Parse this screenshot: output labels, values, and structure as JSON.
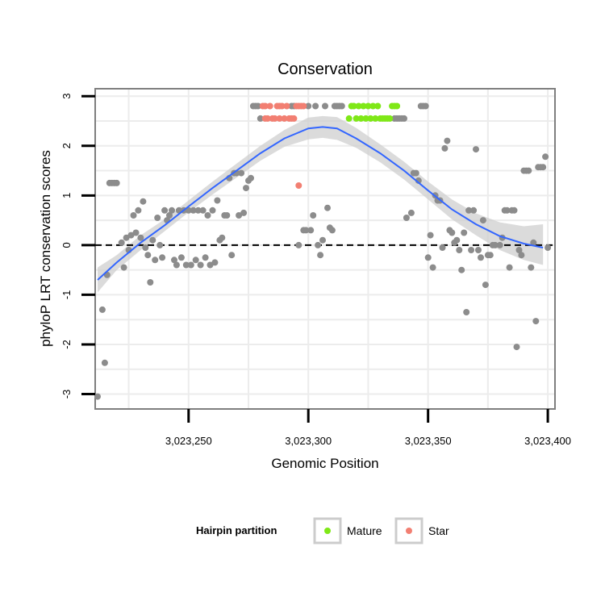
{
  "chart_data": {
    "type": "scatter",
    "title": "Conservation",
    "xlabel": "Genomic Position",
    "ylabel": "phyloP LRT conservation scores",
    "xlim": [
      3023211,
      3023403
    ],
    "ylim": [
      -3.3,
      3.15
    ],
    "x_ticks": [
      3023250,
      3023300,
      3023350,
      3023400
    ],
    "x_tick_labels": [
      "3,023,250",
      "3,023,300",
      "3,023,350",
      "3,023,400"
    ],
    "y_ticks": [
      -3,
      -2,
      -1,
      0,
      1,
      2,
      3
    ],
    "y_tick_labels": [
      "-3",
      "-2",
      "-1",
      "0",
      "1",
      "2",
      "3"
    ],
    "reference_line": {
      "y": 0,
      "style": "dashed"
    },
    "colors": {
      "other": "#8c8c8c",
      "mature": "#7fe817",
      "star": "#f27f72",
      "smooth": "#3366ff",
      "band": "#cfcfcf",
      "grid": "#ececec"
    },
    "legend": {
      "title": "Hairpin partition",
      "position": "bottom",
      "entries": [
        {
          "key": "mature",
          "label": "Mature"
        },
        {
          "key": "star",
          "label": "Star"
        }
      ]
    },
    "smooth": {
      "x": [
        3023212,
        3023220,
        3023230,
        3023240,
        3023250,
        3023260,
        3023270,
        3023280,
        3023290,
        3023300,
        3023306,
        3023312,
        3023320,
        3023330,
        3023340,
        3023350,
        3023360,
        3023370,
        3023380,
        3023390,
        3023398
      ],
      "y": [
        -0.7,
        -0.35,
        0.05,
        0.4,
        0.78,
        1.15,
        1.5,
        1.85,
        2.15,
        2.35,
        2.38,
        2.35,
        2.15,
        1.85,
        1.5,
        1.1,
        0.72,
        0.42,
        0.18,
        0.03,
        -0.05
      ],
      "lower": [
        -0.95,
        -0.5,
        -0.1,
        0.28,
        0.66,
        1.02,
        1.36,
        1.7,
        1.98,
        2.13,
        2.16,
        2.12,
        1.96,
        1.67,
        1.32,
        0.92,
        0.52,
        0.2,
        -0.1,
        -0.3,
        -0.4
      ],
      "upper": [
        -0.45,
        -0.2,
        0.2,
        0.52,
        0.9,
        1.28,
        1.64,
        2.0,
        2.32,
        2.57,
        2.6,
        2.58,
        2.36,
        2.03,
        1.68,
        1.28,
        0.92,
        0.64,
        0.46,
        0.38,
        0.42
      ]
    },
    "series": [
      {
        "name": "Other",
        "key": "other",
        "points": [
          [
            3023212,
            -3.05
          ],
          [
            3023214,
            -1.3
          ],
          [
            3023215,
            -2.37
          ],
          [
            3023216,
            -0.6
          ],
          [
            3023217,
            1.25
          ],
          [
            3023218,
            1.25
          ],
          [
            3023219,
            1.25
          ],
          [
            3023220,
            1.25
          ],
          [
            3023222,
            0.05
          ],
          [
            3023223,
            -0.45
          ],
          [
            3023224,
            0.15
          ],
          [
            3023225,
            -0.1
          ],
          [
            3023226,
            0.2
          ],
          [
            3023227,
            0.6
          ],
          [
            3023228,
            0.25
          ],
          [
            3023229,
            0.7
          ],
          [
            3023230,
            0.15
          ],
          [
            3023231,
            0.88
          ],
          [
            3023232,
            -0.05
          ],
          [
            3023233,
            -0.2
          ],
          [
            3023234,
            -0.75
          ],
          [
            3023235,
            0.1
          ],
          [
            3023236,
            -0.3
          ],
          [
            3023237,
            0.55
          ],
          [
            3023238,
            0.0
          ],
          [
            3023239,
            -0.25
          ],
          [
            3023240,
            0.7
          ],
          [
            3023241,
            0.5
          ],
          [
            3023242,
            0.6
          ],
          [
            3023243,
            0.7
          ],
          [
            3023244,
            -0.3
          ],
          [
            3023245,
            -0.4
          ],
          [
            3023246,
            0.7
          ],
          [
            3023247,
            -0.25
          ],
          [
            3023248,
            0.7
          ],
          [
            3023249,
            -0.4
          ],
          [
            3023250,
            0.7
          ],
          [
            3023251,
            -0.4
          ],
          [
            3023252,
            0.7
          ],
          [
            3023253,
            -0.3
          ],
          [
            3023254,
            0.7
          ],
          [
            3023255,
            -0.4
          ],
          [
            3023256,
            0.7
          ],
          [
            3023257,
            -0.25
          ],
          [
            3023258,
            0.6
          ],
          [
            3023259,
            -0.4
          ],
          [
            3023260,
            0.7
          ],
          [
            3023261,
            -0.35
          ],
          [
            3023262,
            0.9
          ],
          [
            3023263,
            0.1
          ],
          [
            3023264,
            0.15
          ],
          [
            3023265,
            0.6
          ],
          [
            3023266,
            0.6
          ],
          [
            3023267,
            1.35
          ],
          [
            3023268,
            -0.2
          ],
          [
            3023269,
            1.45
          ],
          [
            3023270,
            1.45
          ],
          [
            3023271,
            0.6
          ],
          [
            3023272,
            1.45
          ],
          [
            3023273,
            0.65
          ],
          [
            3023274,
            1.15
          ],
          [
            3023275,
            1.3
          ],
          [
            3023276,
            1.35
          ],
          [
            3023277,
            2.8
          ],
          [
            3023278,
            2.8
          ],
          [
            3023279,
            2.8
          ],
          [
            3023280,
            2.55
          ],
          [
            3023293,
            2.8
          ],
          [
            3023294,
            2.8
          ],
          [
            3023296,
            0.0
          ],
          [
            3023298,
            0.3
          ],
          [
            3023299,
            0.3
          ],
          [
            3023300,
            2.8
          ],
          [
            3023301,
            0.3
          ],
          [
            3023302,
            0.6
          ],
          [
            3023303,
            2.8
          ],
          [
            3023304,
            0.0
          ],
          [
            3023305,
            -0.2
          ],
          [
            3023306,
            0.1
          ],
          [
            3023307,
            2.8
          ],
          [
            3023308,
            0.75
          ],
          [
            3023309,
            0.35
          ],
          [
            3023310,
            0.3
          ],
          [
            3023311,
            2.8
          ],
          [
            3023312,
            2.8
          ],
          [
            3023313,
            2.8
          ],
          [
            3023314,
            2.8
          ],
          [
            3023336,
            2.55
          ],
          [
            3023337,
            2.55
          ],
          [
            3023338,
            2.55
          ],
          [
            3023339,
            2.55
          ],
          [
            3023340,
            2.55
          ],
          [
            3023341,
            0.55
          ],
          [
            3023343,
            0.65
          ],
          [
            3023344,
            1.45
          ],
          [
            3023345,
            1.45
          ],
          [
            3023346,
            1.3
          ],
          [
            3023347,
            2.8
          ],
          [
            3023348,
            2.8
          ],
          [
            3023349,
            2.8
          ],
          [
            3023350,
            -0.25
          ],
          [
            3023351,
            0.2
          ],
          [
            3023352,
            -0.45
          ],
          [
            3023353,
            1.0
          ],
          [
            3023354,
            0.9
          ],
          [
            3023355,
            0.9
          ],
          [
            3023356,
            -0.05
          ],
          [
            3023357,
            1.95
          ],
          [
            3023358,
            2.1
          ],
          [
            3023359,
            0.3
          ],
          [
            3023360,
            0.25
          ],
          [
            3023361,
            0.05
          ],
          [
            3023362,
            0.1
          ],
          [
            3023363,
            -0.1
          ],
          [
            3023364,
            -0.5
          ],
          [
            3023365,
            0.25
          ],
          [
            3023366,
            -1.35
          ],
          [
            3023367,
            0.7
          ],
          [
            3023368,
            -0.1
          ],
          [
            3023369,
            0.7
          ],
          [
            3023370,
            1.93
          ],
          [
            3023371,
            -0.1
          ],
          [
            3023372,
            -0.25
          ],
          [
            3023373,
            0.5
          ],
          [
            3023374,
            -0.8
          ],
          [
            3023375,
            -0.2
          ],
          [
            3023376,
            -0.2
          ],
          [
            3023377,
            0.0
          ],
          [
            3023378,
            0.0
          ],
          [
            3023380,
            0.0
          ],
          [
            3023381,
            0.15
          ],
          [
            3023382,
            0.7
          ],
          [
            3023383,
            0.7
          ],
          [
            3023384,
            -0.45
          ],
          [
            3023385,
            0.7
          ],
          [
            3023386,
            0.7
          ],
          [
            3023387,
            -2.05
          ],
          [
            3023388,
            -0.1
          ],
          [
            3023389,
            -0.2
          ],
          [
            3023390,
            1.5
          ],
          [
            3023391,
            1.5
          ],
          [
            3023392,
            1.5
          ],
          [
            3023393,
            -0.45
          ],
          [
            3023394,
            0.05
          ],
          [
            3023395,
            -1.53
          ],
          [
            3023396,
            1.57
          ],
          [
            3023397,
            1.57
          ],
          [
            3023398,
            1.57
          ],
          [
            3023399,
            1.78
          ],
          [
            3023400,
            -0.05
          ]
        ]
      },
      {
        "name": "Star",
        "key": "star",
        "points": [
          [
            3023281,
            2.8
          ],
          [
            3023282,
            2.8
          ],
          [
            3023282,
            2.55
          ],
          [
            3023283,
            2.55
          ],
          [
            3023284,
            2.8
          ],
          [
            3023285,
            2.55
          ],
          [
            3023286,
            2.55
          ],
          [
            3023287,
            2.8
          ],
          [
            3023288,
            2.8
          ],
          [
            3023288,
            2.55
          ],
          [
            3023289,
            2.8
          ],
          [
            3023290,
            2.55
          ],
          [
            3023291,
            2.8
          ],
          [
            3023292,
            2.55
          ],
          [
            3023293,
            2.55
          ],
          [
            3023294,
            2.55
          ],
          [
            3023295,
            2.8
          ],
          [
            3023296,
            2.8
          ],
          [
            3023296,
            1.2
          ],
          [
            3023297,
            2.8
          ],
          [
            3023298,
            2.8
          ]
        ]
      },
      {
        "name": "Mature",
        "key": "mature",
        "points": [
          [
            3023317,
            2.55
          ],
          [
            3023318,
            2.8
          ],
          [
            3023319,
            2.8
          ],
          [
            3023320,
            2.55
          ],
          [
            3023321,
            2.8
          ],
          [
            3023322,
            2.55
          ],
          [
            3023323,
            2.8
          ],
          [
            3023324,
            2.55
          ],
          [
            3023325,
            2.8
          ],
          [
            3023326,
            2.55
          ],
          [
            3023327,
            2.8
          ],
          [
            3023328,
            2.55
          ],
          [
            3023329,
            2.8
          ],
          [
            3023330,
            2.55
          ],
          [
            3023331,
            2.55
          ],
          [
            3023332,
            2.55
          ],
          [
            3023333,
            2.55
          ],
          [
            3023334,
            2.55
          ],
          [
            3023335,
            2.8
          ],
          [
            3023336,
            2.8
          ],
          [
            3023337,
            2.8
          ]
        ]
      }
    ]
  }
}
